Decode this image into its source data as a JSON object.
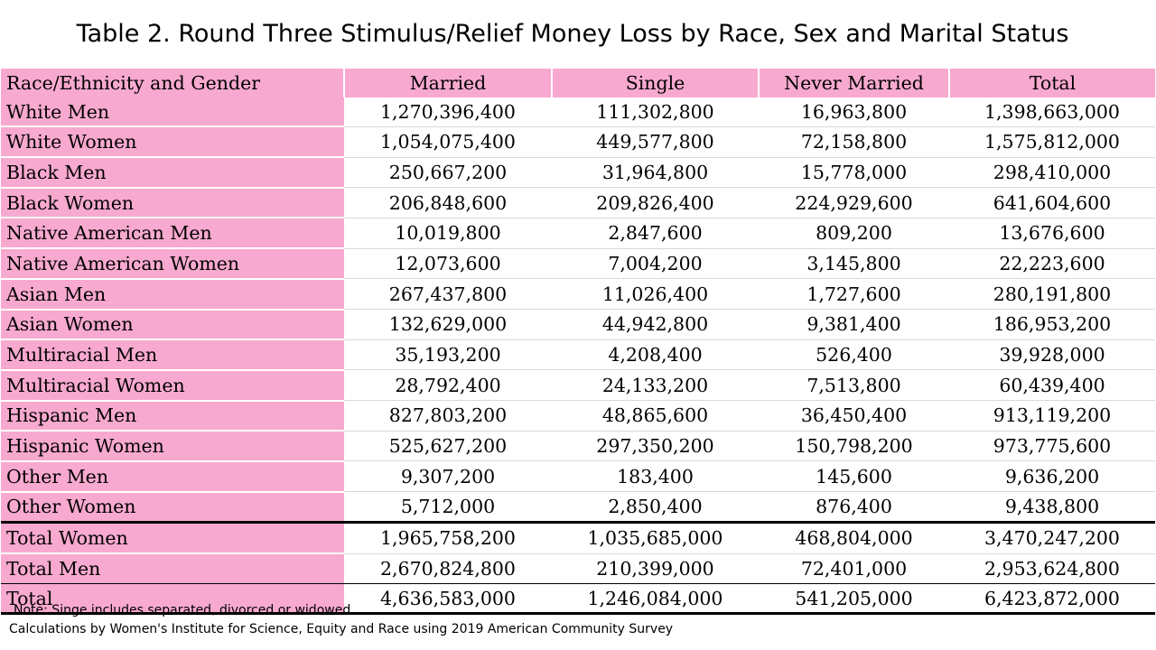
{
  "title": "Table 2. Round Three Stimulus/Relief Money Loss by Race, Sex and Marital Status",
  "table": {
    "columns": [
      "Race/Ethnicity and Gender",
      "Married",
      "Single",
      "Never Married",
      "Total"
    ],
    "rows": [
      {
        "label": "White Men",
        "married": "1,270,396,400",
        "single": "111,302,800",
        "never_married": "16,963,800",
        "total": "1,398,663,000"
      },
      {
        "label": "White Women",
        "married": "1,054,075,400",
        "single": "449,577,800",
        "never_married": "72,158,800",
        "total": "1,575,812,000"
      },
      {
        "label": "Black Men",
        "married": "250,667,200",
        "single": "31,964,800",
        "never_married": "15,778,000",
        "total": "298,410,000"
      },
      {
        "label": "Black Women",
        "married": "206,848,600",
        "single": "209,826,400",
        "never_married": "224,929,600",
        "total": "641,604,600"
      },
      {
        "label": "Native American Men",
        "married": "10,019,800",
        "single": "2,847,600",
        "never_married": "809,200",
        "total": "13,676,600"
      },
      {
        "label": "Native American Women",
        "married": "12,073,600",
        "single": "7,004,200",
        "never_married": "3,145,800",
        "total": "22,223,600"
      },
      {
        "label": "Asian Men",
        "married": "267,437,800",
        "single": "11,026,400",
        "never_married": "1,727,600",
        "total": "280,191,800"
      },
      {
        "label": "Asian Women",
        "married": "132,629,000",
        "single": "44,942,800",
        "never_married": "9,381,400",
        "total": "186,953,200"
      },
      {
        "label": "Multiracial Men",
        "married": "35,193,200",
        "single": "4,208,400",
        "never_married": "526,400",
        "total": "39,928,000"
      },
      {
        "label": "Multiracial Women",
        "married": "28,792,400",
        "single": "24,133,200",
        "never_married": "7,513,800",
        "total": "60,439,400"
      },
      {
        "label": "Hispanic Men",
        "married": "827,803,200",
        "single": "48,865,600",
        "never_married": "36,450,400",
        "total": "913,119,200"
      },
      {
        "label": "Hispanic Women",
        "married": "525,627,200",
        "single": "297,350,200",
        "never_married": "150,798,200",
        "total": "973,775,600"
      },
      {
        "label": "Other Men",
        "married": "9,307,200",
        "single": "183,400",
        "never_married": "145,600",
        "total": "9,636,200"
      },
      {
        "label": "Other Women",
        "married": "5,712,000",
        "single": "2,850,400",
        "never_married": "876,400",
        "total": "9,438,800"
      },
      {
        "label": "Total Women",
        "married": "1,965,758,200",
        "single": "1,035,685,000",
        "never_married": "468,804,000",
        "total": "3,470,247,200"
      },
      {
        "label": "Total Men",
        "married": "2,670,824,800",
        "single": "210,399,000",
        "never_married": "72,401,000",
        "total": "2,953,624,800"
      },
      {
        "label": "Total",
        "married": "4,636,583,000",
        "single": "1,246,084,000",
        "never_married": "541,205,000",
        "total": "6,423,872,000"
      }
    ]
  },
  "notes": {
    "note": "Note: Singe includes separated, divorced or widowed.",
    "source": "Calculations by Women's Institute  for Science, Equity and Race using 2019 American Community Survey"
  },
  "colors": {
    "header_pink": "#f8a9cf",
    "rule": "#000000"
  }
}
